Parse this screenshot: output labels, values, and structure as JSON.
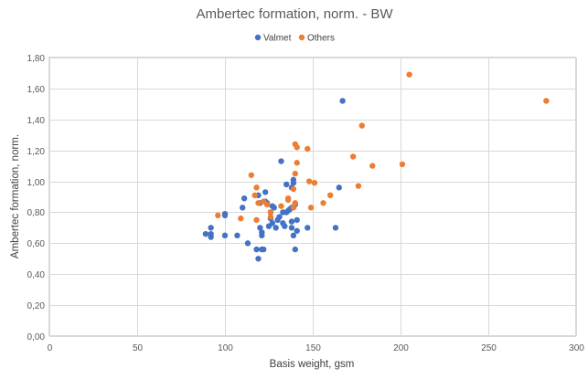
{
  "chart_data": {
    "type": "scatter",
    "title": "Ambertec formation, norm. - BW",
    "xlabel": "Basis weight, gsm",
    "ylabel": "Ambertec formation, norm.",
    "xlim": [
      0,
      300
    ],
    "ylim": [
      0,
      1.8
    ],
    "x_ticks": [
      0,
      50,
      100,
      150,
      200,
      250,
      300
    ],
    "x_tick_labels": [
      "0",
      "50",
      "100",
      "150",
      "200",
      "250",
      "300"
    ],
    "y_ticks": [
      0,
      0.2,
      0.4,
      0.6,
      0.8,
      1.0,
      1.2,
      1.4,
      1.6,
      1.8
    ],
    "y_tick_labels": [
      "0,00",
      "0,20",
      "0,40",
      "0,60",
      "0,80",
      "1,00",
      "1,20",
      "1,40",
      "1,60",
      "1,80"
    ],
    "grid": true,
    "legend_position": "top",
    "series": [
      {
        "name": "Valmet",
        "color": "#4472c4",
        "points": [
          [
            89,
            0.66
          ],
          [
            92,
            0.7
          ],
          [
            92,
            0.66
          ],
          [
            92,
            0.64
          ],
          [
            100,
            0.79
          ],
          [
            100,
            0.78
          ],
          [
            100,
            0.65
          ],
          [
            107,
            0.65
          ],
          [
            110,
            0.83
          ],
          [
            111,
            0.89
          ],
          [
            113,
            0.6
          ],
          [
            118,
            0.56
          ],
          [
            119,
            0.5
          ],
          [
            119,
            0.91
          ],
          [
            120,
            0.86
          ],
          [
            120,
            0.7
          ],
          [
            121,
            0.67
          ],
          [
            121,
            0.65
          ],
          [
            121,
            0.56
          ],
          [
            122,
            0.56
          ],
          [
            123,
            0.87
          ],
          [
            123,
            0.93
          ],
          [
            124,
            0.86
          ],
          [
            125,
            0.71
          ],
          [
            126,
            0.8
          ],
          [
            126,
            0.76
          ],
          [
            127,
            0.84
          ],
          [
            127,
            0.73
          ],
          [
            128,
            0.83
          ],
          [
            129,
            0.7
          ],
          [
            130,
            0.75
          ],
          [
            131,
            0.77
          ],
          [
            132,
            1.13
          ],
          [
            133,
            0.8
          ],
          [
            133,
            0.73
          ],
          [
            134,
            0.71
          ],
          [
            135,
            0.98
          ],
          [
            135,
            0.8
          ],
          [
            136,
            0.81
          ],
          [
            137,
            0.82
          ],
          [
            138,
            0.96
          ],
          [
            138,
            0.83
          ],
          [
            138,
            0.74
          ],
          [
            138,
            0.7
          ],
          [
            139,
            1.01
          ],
          [
            139,
            0.99
          ],
          [
            139,
            0.65
          ],
          [
            140,
            0.85
          ],
          [
            140,
            0.56
          ],
          [
            141,
            0.75
          ],
          [
            141,
            0.68
          ],
          [
            147,
            0.7
          ],
          [
            163,
            0.7
          ],
          [
            165,
            0.96
          ],
          [
            167,
            1.52
          ]
        ]
      },
      {
        "name": "Others",
        "color": "#ed7d31",
        "points": [
          [
            96,
            0.78
          ],
          [
            109,
            0.76
          ],
          [
            115,
            1.04
          ],
          [
            117,
            0.91
          ],
          [
            118,
            0.96
          ],
          [
            118,
            0.75
          ],
          [
            119,
            0.86
          ],
          [
            122,
            0.87
          ],
          [
            124,
            0.85
          ],
          [
            126,
            0.8
          ],
          [
            126,
            0.77
          ],
          [
            132,
            0.84
          ],
          [
            136,
            0.89
          ],
          [
            136,
            0.88
          ],
          [
            139,
            0.95
          ],
          [
            139,
            0.83
          ],
          [
            140,
            1.24
          ],
          [
            140,
            1.05
          ],
          [
            140,
            0.86
          ],
          [
            141,
            1.22
          ],
          [
            141,
            1.12
          ],
          [
            147,
            1.21
          ],
          [
            148,
            1.0
          ],
          [
            149,
            0.83
          ],
          [
            151,
            0.99
          ],
          [
            156,
            0.86
          ],
          [
            160,
            0.91
          ],
          [
            173,
            1.16
          ],
          [
            176,
            0.97
          ],
          [
            178,
            1.36
          ],
          [
            184,
            1.1
          ],
          [
            201,
            1.11
          ],
          [
            205,
            1.69
          ],
          [
            283,
            1.52
          ]
        ]
      }
    ]
  }
}
